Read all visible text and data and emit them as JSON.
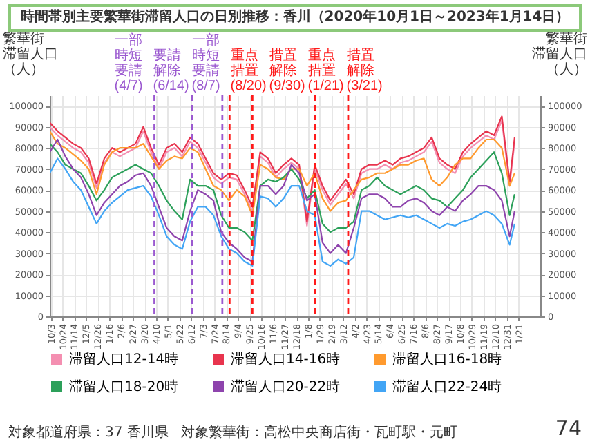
{
  "chart_data": {
    "type": "line",
    "title": "時間帯別主要繁華街滞留人口の日別推移：香川（2020年10月1日～2023年1月14日）",
    "ylabel": "繁華街滞留人口（人）",
    "y2label": "繁華街滞留人口（人）",
    "x": [
      "2020-10-01",
      "2020-10-15",
      "2020-10-29",
      "2020-11-12",
      "2020-11-26",
      "2020-12-10",
      "2020-12-24",
      "2021-01-07",
      "2021-01-21",
      "2021-02-04",
      "2021-02-18",
      "2021-03-04",
      "2021-03-18",
      "2021-04-01",
      "2021-04-15",
      "2021-04-29",
      "2021-05-13",
      "2021-05-27",
      "2021-06-10",
      "2021-06-24",
      "2021-07-08",
      "2021-07-22",
      "2021-08-05",
      "2021-08-19",
      "2021-09-02",
      "2021-09-16",
      "2021-09-30",
      "2021-10-14",
      "2021-10-28",
      "2021-11-11",
      "2021-11-25",
      "2021-12-09",
      "2021-12-23",
      "2022-01-06",
      "2022-01-20",
      "2022-02-03",
      "2022-02-17",
      "2022-03-03",
      "2022-03-17",
      "2022-03-31",
      "2022-04-14",
      "2022-04-28",
      "2022-05-12",
      "2022-05-26",
      "2022-06-09",
      "2022-06-23",
      "2022-07-07",
      "2022-07-21",
      "2022-08-04",
      "2022-08-18",
      "2022-09-01",
      "2022-09-15",
      "2022-09-29",
      "2022-10-13",
      "2022-10-27",
      "2022-11-10",
      "2022-11-24",
      "2022-12-08",
      "2022-12-22",
      "2023-01-05",
      "2023-01-14"
    ],
    "series": [
      {
        "name": "滞留人口12-14時",
        "color": "#f48fb1",
        "values": [
          90000,
          86000,
          83000,
          80000,
          78000,
          73000,
          61000,
          73000,
          78000,
          76000,
          78000,
          80000,
          88000,
          78000,
          70000,
          78000,
          80000,
          76000,
          83000,
          80000,
          73000,
          66000,
          63000,
          66000,
          65000,
          58000,
          50000,
          76000,
          73000,
          66000,
          70000,
          73000,
          70000,
          43000,
          70000,
          60000,
          53000,
          58000,
          63000,
          56000,
          68000,
          70000,
          70000,
          72000,
          70000,
          73000,
          74000,
          76000,
          78000,
          83000,
          73000,
          70000,
          68000,
          76000,
          80000,
          83000,
          86000,
          84000,
          93000,
          62000,
          83000
        ]
      },
      {
        "name": "滞留人口14-16時",
        "color": "#e8344e",
        "values": [
          92000,
          88000,
          85000,
          82000,
          80000,
          75000,
          63000,
          75000,
          80000,
          78000,
          80000,
          82000,
          90000,
          80000,
          72000,
          80000,
          82000,
          78000,
          85000,
          82000,
          75000,
          68000,
          65000,
          68000,
          67000,
          60000,
          52000,
          78000,
          75000,
          68000,
          72000,
          75000,
          72000,
          45000,
          72000,
          62000,
          55000,
          60000,
          65000,
          58000,
          70000,
          72000,
          72000,
          74000,
          72000,
          75000,
          76000,
          78000,
          80000,
          85000,
          75000,
          72000,
          70000,
          78000,
          82000,
          85000,
          88000,
          86000,
          95000,
          64000,
          85000
        ]
      },
      {
        "name": "滞留人口16-18時",
        "color": "#ff9a2e",
        "values": [
          88000,
          82000,
          80000,
          77000,
          74000,
          70000,
          58000,
          72000,
          78000,
          80000,
          80000,
          80000,
          82000,
          76000,
          70000,
          74000,
          76000,
          75000,
          80000,
          78000,
          70000,
          62000,
          60000,
          55000,
          60000,
          57000,
          48000,
          72000,
          70000,
          66000,
          65000,
          70000,
          70000,
          62000,
          68000,
          56000,
          50000,
          54000,
          55000,
          60000,
          65000,
          66000,
          68000,
          68000,
          70000,
          72000,
          72000,
          74000,
          75000,
          65000,
          62000,
          66000,
          72000,
          75000,
          75000,
          80000,
          84000,
          84000,
          80000,
          62000,
          68000
        ]
      },
      {
        "name": "滞留人口18-20時",
        "color": "#2ca05a",
        "values": [
          82000,
          78000,
          72000,
          70000,
          68000,
          62000,
          55000,
          60000,
          66000,
          68000,
          70000,
          72000,
          70000,
          68000,
          62000,
          55000,
          50000,
          46000,
          65000,
          62000,
          62000,
          60000,
          48000,
          42000,
          42000,
          40000,
          36000,
          62000,
          65000,
          64000,
          66000,
          70000,
          65000,
          56000,
          60000,
          44000,
          40000,
          42000,
          42000,
          45000,
          60000,
          62000,
          66000,
          62000,
          60000,
          58000,
          60000,
          62000,
          60000,
          56000,
          55000,
          52000,
          56000,
          60000,
          66000,
          70000,
          74000,
          78000,
          68000,
          48000,
          58000
        ]
      },
      {
        "name": "滞留人口20-22時",
        "color": "#8e44ad",
        "values": [
          78000,
          84000,
          76000,
          70000,
          66000,
          58000,
          48000,
          54000,
          58000,
          62000,
          64000,
          67000,
          68000,
          62000,
          52000,
          42000,
          38000,
          36000,
          50000,
          60000,
          58000,
          55000,
          40000,
          35000,
          32000,
          28000,
          26000,
          62000,
          62000,
          58000,
          62000,
          72000,
          68000,
          55000,
          58000,
          35000,
          30000,
          34000,
          30000,
          42000,
          56000,
          58000,
          58000,
          56000,
          52000,
          52000,
          55000,
          56000,
          54000,
          50000,
          48000,
          52000,
          50000,
          55000,
          58000,
          62000,
          62000,
          60000,
          55000,
          38000,
          50000
        ]
      },
      {
        "name": "滞留人口22-24時",
        "color": "#42a5f5",
        "values": [
          68000,
          75000,
          70000,
          64000,
          60000,
          52000,
          44000,
          50000,
          54000,
          57000,
          60000,
          61000,
          62000,
          57000,
          48000,
          38000,
          34000,
          32000,
          45000,
          52000,
          52000,
          48000,
          38000,
          32000,
          30000,
          26000,
          24000,
          57000,
          56000,
          52000,
          56000,
          62000,
          62000,
          50000,
          48000,
          26000,
          24000,
          27000,
          25000,
          28000,
          50000,
          50000,
          48000,
          46000,
          47000,
          48000,
          47000,
          48000,
          46000,
          44000,
          42000,
          44000,
          43000,
          45000,
          46000,
          48000,
          50000,
          48000,
          44000,
          34000,
          44000
        ]
      }
    ],
    "xlim": [
      "2020-10-01",
      "2023-03-01"
    ],
    "xticks": [
      {
        "value": "2020-10-03",
        "label": "10/3"
      },
      {
        "value": "2020-10-24",
        "label": "10/24"
      },
      {
        "value": "2020-11-14",
        "label": "11/14"
      },
      {
        "value": "2020-12-05",
        "label": "12/5"
      },
      {
        "value": "2020-12-26",
        "label": "12/26"
      },
      {
        "value": "2021-01-16",
        "label": "1/16"
      },
      {
        "value": "2021-02-06",
        "label": "2/6"
      },
      {
        "value": "2021-02-27",
        "label": "2/27"
      },
      {
        "value": "2021-03-20",
        "label": "3/20"
      },
      {
        "value": "2021-04-10",
        "label": "4/10"
      },
      {
        "value": "2021-05-01",
        "label": "5/1"
      },
      {
        "value": "2021-05-22",
        "label": "5/22"
      },
      {
        "value": "2021-06-12",
        "label": "6/12"
      },
      {
        "value": "2021-07-03",
        "label": "7/3"
      },
      {
        "value": "2021-07-24",
        "label": "7/24"
      },
      {
        "value": "2021-08-14",
        "label": "8/14"
      },
      {
        "value": "2021-09-04",
        "label": "9/4"
      },
      {
        "value": "2021-09-25",
        "label": "9/25"
      },
      {
        "value": "2021-10-16",
        "label": "10/16"
      },
      {
        "value": "2021-11-06",
        "label": "11/6"
      },
      {
        "value": "2021-11-27",
        "label": "11/27"
      },
      {
        "value": "2021-12-18",
        "label": "12/18"
      },
      {
        "value": "2022-01-08",
        "label": "1/8"
      },
      {
        "value": "2022-01-29",
        "label": "1/29"
      },
      {
        "value": "2022-02-19",
        "label": "2/19"
      },
      {
        "value": "2022-03-12",
        "label": "3/12"
      },
      {
        "value": "2022-04-02",
        "label": "4/2"
      },
      {
        "value": "2022-04-23",
        "label": "4/23"
      },
      {
        "value": "2022-05-14",
        "label": "5/14"
      },
      {
        "value": "2022-06-04",
        "label": "6/4"
      },
      {
        "value": "2022-06-25",
        "label": "6/25"
      },
      {
        "value": "2022-07-16",
        "label": "7/16"
      },
      {
        "value": "2022-08-06",
        "label": "8/6"
      },
      {
        "value": "2022-08-27",
        "label": "8/27"
      },
      {
        "value": "2022-09-17",
        "label": "9/17"
      },
      {
        "value": "2022-10-08",
        "label": "10/8"
      },
      {
        "value": "2022-10-29",
        "label": "10/29"
      },
      {
        "value": "2022-11-19",
        "label": "11/19"
      },
      {
        "value": "2022-12-10",
        "label": "12/10"
      },
      {
        "value": "2022-12-31",
        "label": "12/31"
      },
      {
        "value": "2023-01-21",
        "label": "1/21"
      }
    ],
    "ylim": [
      0,
      105000
    ],
    "yticks": [
      0,
      10000,
      20000,
      30000,
      40000,
      50000,
      60000,
      70000,
      80000,
      90000,
      100000
    ],
    "y2lim": [
      0,
      105000
    ],
    "y2ticks": [
      0,
      10000,
      20000,
      30000,
      40000,
      50000,
      60000,
      70000,
      80000,
      90000,
      100000
    ],
    "ref_lines": [
      {
        "axis": "x",
        "value": "2021-04-07",
        "label": "一部時短要請(4/7)",
        "color": "#9b59d0",
        "line_style": "dashed"
      },
      {
        "axis": "x",
        "value": "2021-06-14",
        "label": "要請解除(6/14)",
        "color": "#9b59d0",
        "line_style": "dashed"
      },
      {
        "axis": "x",
        "value": "2021-08-07",
        "label": "一部時短要請(8/7)",
        "color": "#9b59d0",
        "line_style": "dashed"
      },
      {
        "axis": "x",
        "value": "2021-08-20",
        "label": "重点措置(8/20)",
        "color": "#ff1a1a",
        "line_style": "dashed"
      },
      {
        "axis": "x",
        "value": "2021-09-30",
        "label": "措置解除(9/30)",
        "color": "#ff1a1a",
        "line_style": "dashed"
      },
      {
        "axis": "x",
        "value": "2022-01-21",
        "label": "重点措置(1/21)",
        "color": "#ff1a1a",
        "line_style": "dashed"
      },
      {
        "axis": "x",
        "value": "2022-03-21",
        "label": "措置解除(3/21)",
        "color": "#ff1a1a",
        "line_style": "dashed"
      }
    ],
    "annotations": [
      "対象都道府県：37 香川県",
      "対象繁華街：高松中央商店街・瓦町駅・元町",
      "74"
    ],
    "grid": true,
    "legend": "bottom"
  }
}
